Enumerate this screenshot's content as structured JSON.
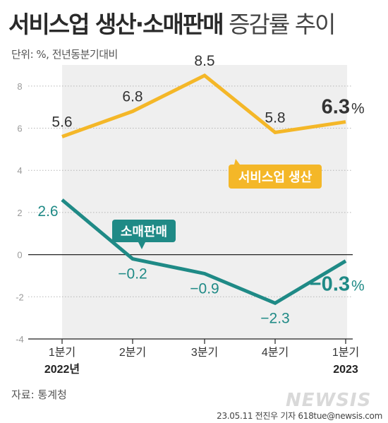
{
  "header": {
    "title_bold": "서비스업 생산·소매판매",
    "title_light": "증감률 추이",
    "unit": "단위: %, 전년동분기대비"
  },
  "footer": {
    "source": "자료: 통계청",
    "credit": "23.05.11 전진우 기자 618tue@newsis.com",
    "watermark": "NEWSIS"
  },
  "chart_data": {
    "type": "line",
    "categories": [
      "1분기",
      "2분기",
      "3분기",
      "4분기",
      "1분기"
    ],
    "year_labels": [
      "2022년",
      "",
      "",
      "",
      "2023"
    ],
    "ylim": [
      -4,
      9
    ],
    "yticks": [
      -4,
      -2,
      0,
      2,
      4,
      6,
      8
    ],
    "series": [
      {
        "name": "서비스업 생산",
        "color": "#f4b728",
        "values": [
          5.6,
          6.8,
          8.5,
          5.8,
          6.3
        ],
        "labels": [
          "5.6",
          "6.8",
          "8.5",
          "5.8",
          "6.3"
        ]
      },
      {
        "name": "소매판매",
        "color": "#1f8a86",
        "values": [
          2.6,
          -0.2,
          -0.9,
          -2.3,
          -0.3
        ],
        "labels": [
          "2.6",
          "−0.2",
          "−0.9",
          "−2.3",
          "−0.3"
        ]
      }
    ],
    "last_value_unit": "%"
  }
}
